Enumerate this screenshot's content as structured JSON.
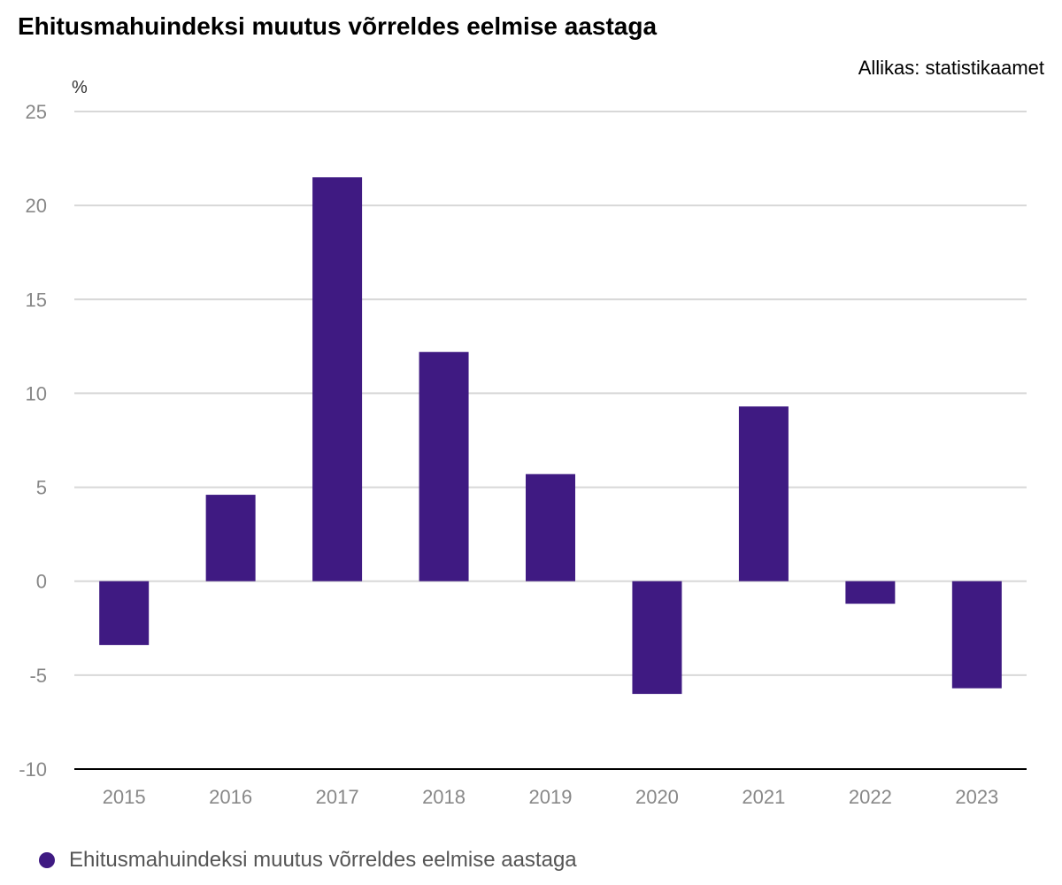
{
  "title": "Ehitusmahuindeksi muutus võrreldes eelmise aastaga",
  "source": "Allikas: statistikaamet",
  "colors": {
    "bar": "#3f1a82",
    "grid": "#d8d8d8",
    "axis": "#000000",
    "tick_text": "#888888"
  },
  "chart_data": {
    "type": "bar",
    "categories": [
      "2015",
      "2016",
      "2017",
      "2018",
      "2019",
      "2020",
      "2021",
      "2022",
      "2023"
    ],
    "series": [
      {
        "name": "Ehitusmahuindeksi muutus võrreldes eelmise aastaga",
        "values": [
          -3.4,
          4.6,
          21.5,
          12.2,
          5.7,
          -6.0,
          9.3,
          -1.2,
          -5.7
        ]
      }
    ],
    "ylabel": "%",
    "ylim": [
      -10,
      25
    ],
    "yticks": [
      25,
      20,
      15,
      10,
      5,
      0,
      -5,
      -10
    ],
    "grid": true,
    "legend": "bottom-left"
  }
}
